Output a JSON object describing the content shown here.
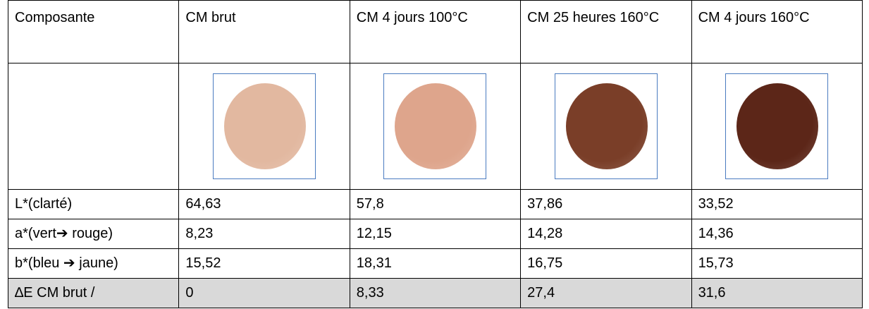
{
  "table": {
    "header": [
      "Composante",
      "CM brut",
      "CM 4 jours 100°C",
      "CM 25 heures 160°C",
      "CM 4 jours 160°C"
    ],
    "rows": [
      [
        "L*(clarté)",
        "64,63",
        "57,8",
        "37,86",
        "33,52"
      ],
      [
        "a*(vert➔ rouge)",
        "8,23",
        "12,15",
        "14,28",
        "14,36"
      ],
      [
        "b*(bleu ➔ jaune)",
        "15,52",
        "18,31",
        "16,75",
        "15,73"
      ],
      [
        "∆E CM brut /",
        "0",
        "8,33",
        "27,4",
        "31,6"
      ]
    ]
  }
}
